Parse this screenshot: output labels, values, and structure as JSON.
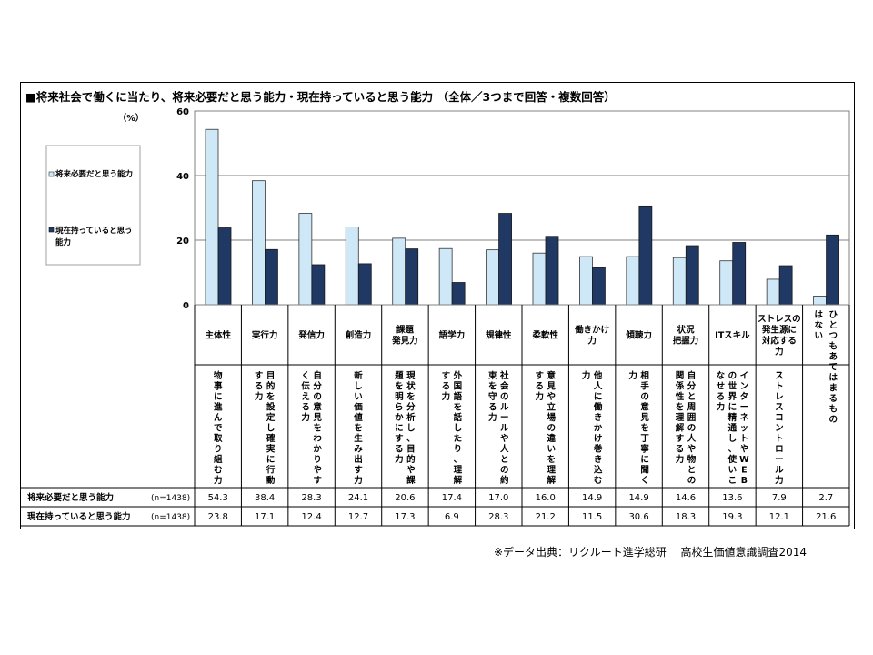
{
  "title": "■将来社会で働くに当たり、将来必要だと思う能力・現在持っていると思う能力 （全体／3つまで回答・複数回答）",
  "source": "※データ出典：リクルート進学総研　 高校生価値意識調査2014",
  "colors": {
    "series1": "#cfe8f8",
    "series2": "#1f3864",
    "stroke": "#000000",
    "grid": "#808080"
  },
  "chart_data": {
    "type": "bar",
    "ylabel": "（%）",
    "ylim": [
      0,
      60
    ],
    "yticks": [
      "0",
      "20",
      "40",
      "60"
    ],
    "grid": true,
    "legend_position": "left",
    "categories": [
      "主体性",
      "実行力",
      "発信力",
      "創造力",
      "課題発見力",
      "語学力",
      "規律性",
      "柔軟性",
      "働きかけ力",
      "傾聴力",
      "状況把握力",
      "ITスキル",
      "ストレスの発生源に対応する力",
      "ひとつもあてはまるものはない"
    ],
    "category_labels": [
      [
        "主体性"
      ],
      [
        "実行力"
      ],
      [
        "発信力"
      ],
      [
        "創造力"
      ],
      [
        "課題",
        "発見力"
      ],
      [
        "語学力"
      ],
      [
        "規律性"
      ],
      [
        "柔軟性"
      ],
      [
        "働きかけ",
        "力"
      ],
      [
        "傾聴力"
      ],
      [
        "状況",
        "把握力"
      ],
      [
        "ITスキル"
      ],
      [
        "ストレスの",
        "発生源に",
        "対応する",
        "力"
      ],
      [
        "ひとつもあてはまるもの",
        "はない"
      ]
    ],
    "descriptions": [
      "物事に進んで取り組む力",
      "目的を設定し確実に行動する力",
      "自分の意見をわかりやすく伝える力",
      "新しい価値を生み出す力",
      "現状を分析し、目的や課題を明らかにする力",
      "外国語を話したり、理解する力",
      "社会のルールや人との約束を守る力",
      "意見や立場の違いを理解する力",
      "他人に働きかけ巻き込む力",
      "相手の意見を丁寧に聞く力",
      "自分と周囲の人や物との関係性を理解する力",
      "インターネットやWEBの世界に精通し、使いこなせる力",
      "ストレスコントロール力",
      ""
    ],
    "series": [
      {
        "name": "将来必要だと思う能力",
        "n_label": "(n=1438)",
        "values": [
          54.3,
          38.4,
          28.3,
          24.1,
          20.6,
          17.4,
          17.0,
          16.0,
          14.9,
          14.9,
          14.6,
          13.6,
          7.9,
          2.7
        ],
        "labels": [
          "54.3",
          "38.4",
          "28.3",
          "24.1",
          "20.6",
          "17.4",
          "17.0",
          "16.0",
          "14.9",
          "14.9",
          "14.6",
          "13.6",
          "7.9",
          "2.7"
        ]
      },
      {
        "name": "現在持っていると思う能力",
        "legend_lines": [
          "現在持っていると思う",
          "能力"
        ],
        "n_label": "(n=1438)",
        "values": [
          23.8,
          17.1,
          12.4,
          12.7,
          17.3,
          6.9,
          28.3,
          21.2,
          11.5,
          30.6,
          18.3,
          19.3,
          12.1,
          21.6
        ],
        "labels": [
          "23.8",
          "17.1",
          "12.4",
          "12.7",
          "17.3",
          "6.9",
          "28.3",
          "21.2",
          "11.5",
          "30.6",
          "18.3",
          "19.3",
          "12.1",
          "21.6"
        ]
      }
    ]
  }
}
